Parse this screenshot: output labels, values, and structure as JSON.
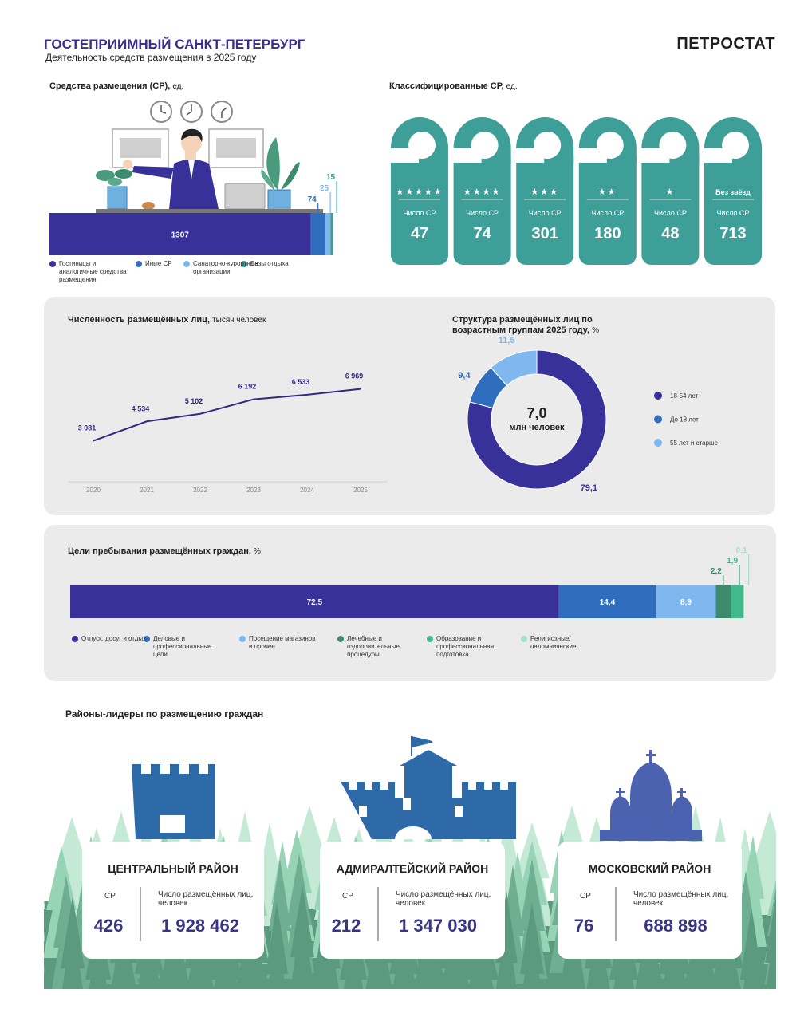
{
  "header": {
    "title": "ГОСТЕПРИИМНЫЙ САНКТ-ПЕТЕРБУРГ",
    "subtitle": "Деятельность средств размещения в 2025 году",
    "brand": "ПЕТРОСТАТ"
  },
  "chart_data": [
    {
      "type": "hbar-stacked",
      "title": "Средства размещения (СР),",
      "unit": "ед.",
      "series": [
        {
          "name": "Гостиницы и аналогичные средства размещения",
          "color": "#38319a",
          "values": [
            1307
          ]
        },
        {
          "name": "Иные СР",
          "color": "#2f6dbf",
          "values": [
            74
          ]
        },
        {
          "name": "Санаторно-курортные организации",
          "color": "#7fb8ef",
          "values": [
            25
          ]
        },
        {
          "name": "Базы отдыха",
          "color": "#3e9e93",
          "values": [
            15
          ]
        }
      ]
    },
    {
      "type": "line",
      "title": "Численность размещённых лиц,",
      "unit": "тысяч человек",
      "categories": [
        "2020",
        "2021",
        "2022",
        "2023",
        "2024",
        "2025"
      ],
      "values": [
        3081,
        4534,
        5102,
        6192,
        6533,
        6969
      ],
      "value_labels": [
        "3 081",
        "4 534",
        "5 102",
        "6 192",
        "6 533",
        "6 969"
      ],
      "color": "#2e2a86",
      "ylim": [
        0,
        10000
      ]
    },
    {
      "type": "donut",
      "title": "Структура размещённых лиц по возрастным группам 2025 году,",
      "unit": "%",
      "categories": [
        "18-54 лет",
        "До 18 лет",
        "55 лет и старше"
      ],
      "values": [
        79.1,
        9.4,
        11.5
      ],
      "value_labels": [
        "79,1",
        "9,4",
        "11,5"
      ],
      "colors": [
        "#38319a",
        "#2f6dbf",
        "#7fb8ef"
      ],
      "center_value": "7,0",
      "center_unit": "млн человек"
    },
    {
      "type": "hbar-stacked",
      "title": "Цели пребывания размещённых граждан,",
      "unit": "%",
      "series": [
        {
          "name": "Отпуск, досуг и отдых",
          "color": "#38319a",
          "values": [
            72.5
          ],
          "value_labels": [
            "72,5"
          ]
        },
        {
          "name": "Деловые и профессиональные цели",
          "color": "#2f6dbf",
          "values": [
            14.4
          ],
          "value_labels": [
            "14,4"
          ]
        },
        {
          "name": "Посещение магазинов и прочее",
          "color": "#7fb8ef",
          "values": [
            8.9
          ],
          "value_labels": [
            "8,9"
          ]
        },
        {
          "name": "Лечебные и оздоровительные процедуры",
          "color": "#3d8a6e",
          "values": [
            2.2
          ],
          "value_labels": [
            "2,2"
          ]
        },
        {
          "name": "Образование и профессиональная подготовка",
          "color": "#43b88c",
          "values": [
            1.9
          ],
          "value_labels": [
            "1,9"
          ]
        },
        {
          "name": "Религиозные/ паломнические",
          "color": "#a8e0c4",
          "values": [
            0.1
          ],
          "value_labels": [
            "0,1"
          ]
        }
      ]
    }
  ],
  "hangers": {
    "title": "Классифицированные СР,",
    "unit": "ед.",
    "items": [
      {
        "class": "★★★★★",
        "label": "Число СР",
        "value": 47
      },
      {
        "class": "★★★★",
        "label": "Число СР",
        "value": 74
      },
      {
        "class": "★★★",
        "label": "Число СР",
        "value": 301
      },
      {
        "class": "★★",
        "label": "Число СР",
        "value": 180
      },
      {
        "class": "★",
        "label": "Число СР",
        "value": 48
      },
      {
        "class": "Без звёзд",
        "label": "Число СР",
        "value": 713
      }
    ]
  },
  "districts": {
    "title": "Районы-лидеры по размещению граждан",
    "items": [
      {
        "name": "ЦЕНТРАЛЬНЫЙ РАЙОН",
        "sr_label": "СР",
        "sr": 426,
        "persons_label": "Число размещённых лиц, человек",
        "persons": "1 928 462"
      },
      {
        "name": "АДМИРАЛТЕЙСКИЙ РАЙОН",
        "sr_label": "СР",
        "sr": 212,
        "persons_label": "Число размещённых лиц, человек",
        "persons": "1 347 030"
      },
      {
        "name": "МОСКОВСКИЙ РАЙОН",
        "sr_label": "СР",
        "sr": 76,
        "persons_label": "Число размещённых лиц, человек",
        "persons": "688 898"
      }
    ]
  }
}
